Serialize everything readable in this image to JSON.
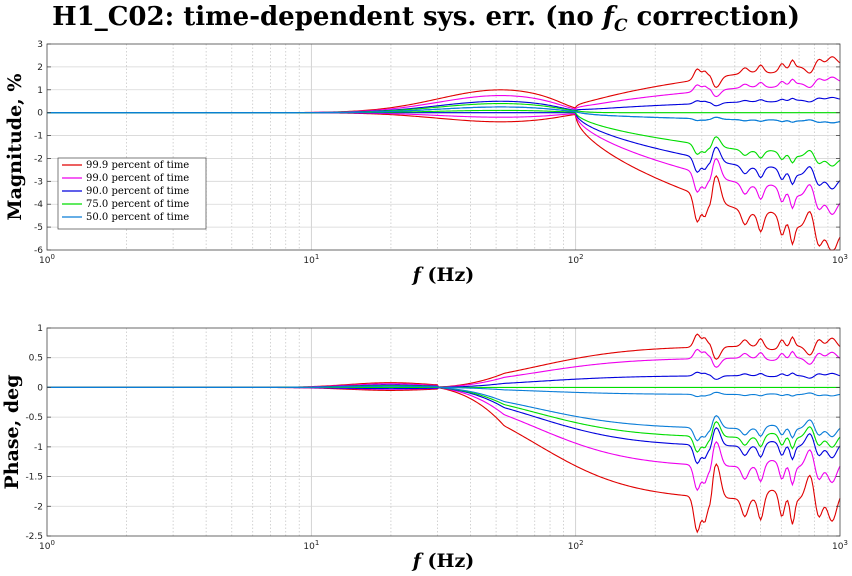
{
  "title": {
    "prefix": "H1_C02: time-dependent sys. err. (no ",
    "symbol": "f",
    "subscript": "C",
    "suffix": " correction)"
  },
  "chart_data": [
    {
      "type": "line",
      "panel": "magnitude",
      "xlabel_symbol": "f",
      "xlabel": "(Hz)",
      "ylabel": "Magnitude, %",
      "xscale": "log",
      "xlim": [
        1,
        1000
      ],
      "ylim": [
        -6,
        3
      ],
      "yticks": [
        -6,
        -5,
        -4,
        -3,
        -2,
        -1,
        0,
        1,
        2,
        3
      ],
      "xtick_labels": [
        "10^0",
        "10^1",
        "10^2",
        "10^3"
      ],
      "grid": true,
      "legend_position": "bottom-left",
      "series": [
        {
          "name": "99.9 percent of time",
          "color": "#e00000",
          "band": {
            "upper_peak": 1.0,
            "lower_peak": -0.4,
            "upper_end": 2.2,
            "lower_end": -5.5
          }
        },
        {
          "name": "99.0 percent of time",
          "color": "#ee00ee",
          "band": {
            "upper_peak": 0.75,
            "lower_peak": -0.2,
            "upper_end": 1.4,
            "lower_end": -4.0
          }
        },
        {
          "name": "90.0 percent of time",
          "color": "#0000dd",
          "band": {
            "upper_peak": 0.5,
            "lower_peak": 0.0,
            "upper_end": 0.6,
            "lower_end": -3.0
          }
        },
        {
          "name": "75.0 percent of time",
          "color": "#00dd00",
          "band": {
            "upper_peak": 0.4,
            "lower_peak": 0.1,
            "upper_end": 0.0,
            "lower_end": -2.1
          }
        },
        {
          "name": "50.0 percent of time",
          "color": "#0a7dd8",
          "band": {
            "upper_peak": 0.25,
            "lower_peak": 0.25,
            "upper_end": -0.4,
            "lower_end": -0.4
          }
        }
      ]
    },
    {
      "type": "line",
      "panel": "phase",
      "xlabel_symbol": "f",
      "xlabel": "(Hz)",
      "ylabel": "Phase, deg",
      "xscale": "log",
      "xlim": [
        1,
        1000
      ],
      "ylim": [
        -2.5,
        1
      ],
      "yticks": [
        -2.5,
        -2,
        -1.5,
        -1,
        -0.5,
        0,
        0.5,
        1
      ],
      "xtick_labels": [
        "10^0",
        "10^1",
        "10^2",
        "10^3"
      ],
      "grid": true,
      "series": [
        {
          "name": "99.9 percent of time",
          "color": "#e00000",
          "band": {
            "upper_peak": 0.08,
            "lower_peak": -0.05,
            "upper_end": 0.7,
            "lower_end": -1.9
          }
        },
        {
          "name": "99.0 percent of time",
          "color": "#ee00ee",
          "band": {
            "upper_peak": 0.06,
            "lower_peak": -0.03,
            "upper_end": 0.5,
            "lower_end": -1.35
          }
        },
        {
          "name": "90.0 percent of time",
          "color": "#0000dd",
          "band": {
            "upper_peak": 0.04,
            "lower_peak": -0.02,
            "upper_end": 0.2,
            "lower_end": -1.0
          }
        },
        {
          "name": "75.0 percent of time",
          "color": "#00dd00",
          "band": {
            "upper_peak": 0.03,
            "lower_peak": 0.0,
            "upper_end": 0.0,
            "lower_end": -0.85
          }
        },
        {
          "name": "50.0 percent of time",
          "color": "#0a7dd8",
          "band": {
            "upper_peak": 0.02,
            "lower_peak": 0.02,
            "upper_end": -0.12,
            "lower_end": -0.7
          }
        }
      ]
    }
  ]
}
